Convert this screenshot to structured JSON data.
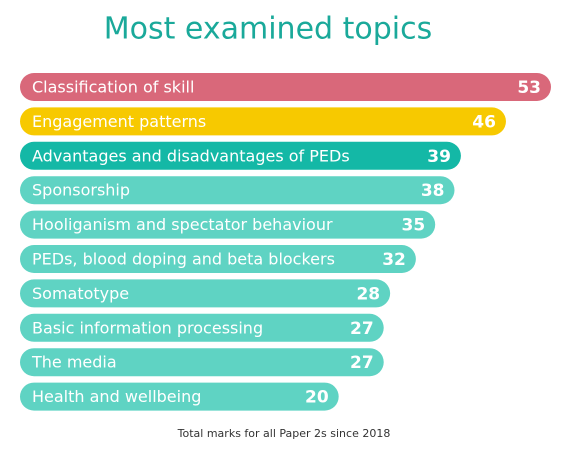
{
  "chart_data": {
    "type": "bar",
    "orientation": "horizontal",
    "title": "Most examined topics",
    "categories": [
      "Classification of skill",
      "Engagement patterns",
      "Advantages and disadvantages of PEDs",
      "Sponsorship",
      "Hooliganism and spectator behaviour",
      "PEDs, blood doping and beta blockers",
      "Somatotype",
      "Basic information processing",
      "The media",
      "Health and wellbeing"
    ],
    "values": [
      53,
      46,
      39,
      38,
      35,
      32,
      28,
      27,
      27,
      20
    ],
    "colors": [
      "#d9687a",
      "#f7c900",
      "#14b8a6",
      "#5fd3c3",
      "#5fd3c3",
      "#5fd3c3",
      "#5fd3c3",
      "#5fd3c3",
      "#5fd3c3",
      "#5fd3c3"
    ],
    "footnote": "Total marks for all Paper 2s since 2018"
  }
}
